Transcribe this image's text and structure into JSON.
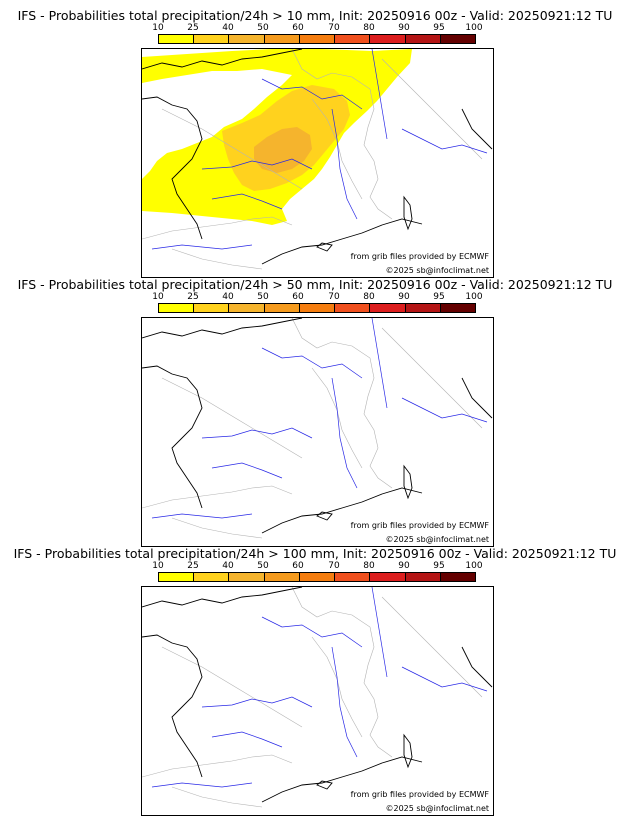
{
  "colors": {
    "c10": "#ffff00",
    "c25": "#ffd21e",
    "c40": "#f5b42d",
    "c50": "#f59b1e",
    "c60": "#f57d0f",
    "c70": "#f0501e",
    "c80": "#dc1e1e",
    "c90": "#b41414",
    "c95": "#8c0a0a",
    "c100": "#640000",
    "river": "#2828e6",
    "border": "#b4b4b4",
    "coast": "#000000"
  },
  "colorbar": {
    "ticks": [
      "10",
      "25",
      "40",
      "50",
      "60",
      "70",
      "80",
      "90",
      "95",
      "100"
    ]
  },
  "panels": [
    {
      "title": "IFS - Probabilities total precipitation/24h > 10 mm, Init: 20250916 00z - Valid: 20250921:12 TU",
      "threshold_mm": 10,
      "source": "from grib files provided by ECMWF",
      "copyright": "©2025 sb@infoclimat.net",
      "has_signal": true
    },
    {
      "title": "IFS - Probabilities total precipitation/24h > 50 mm, Init: 20250916 00z - Valid: 20250921:12 TU",
      "threshold_mm": 50,
      "source": "from grib files provided by ECMWF",
      "copyright": "©2025 sb@infoclimat.net",
      "has_signal": false
    },
    {
      "title": "IFS - Probabilities total precipitation/24h > 100 mm, Init: 20250916 00z - Valid: 20250921:12 TU",
      "threshold_mm": 100,
      "source": "from grib files provided by ECMWF",
      "copyright": "©2025 sb@infoclimat.net",
      "has_signal": false
    }
  ]
}
